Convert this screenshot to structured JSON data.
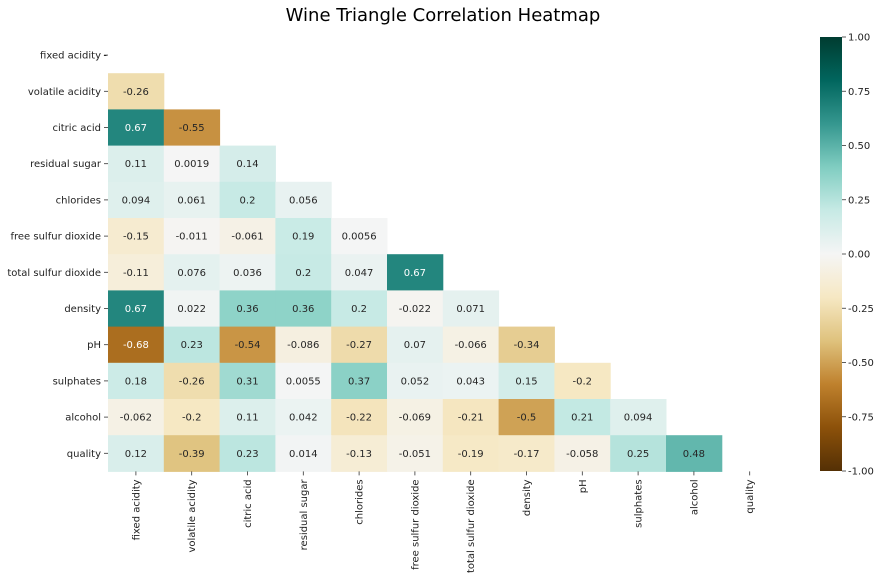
{
  "chart_data": {
    "type": "heatmap",
    "title": "Wine Triangle Correlation Heatmap",
    "variables": [
      "fixed acidity",
      "volatile acidity",
      "citric acid",
      "residual sugar",
      "chlorides",
      "free sulfur dioxide",
      "total sulfur dioxide",
      "density",
      "pH",
      "sulphates",
      "alcohol",
      "quality"
    ],
    "mask": "upper triangle incl. diagonal (lower triangle shown)",
    "empty_cell_label": "-",
    "colormap": "BrBG",
    "vmin": -1.0,
    "vmax": 1.0,
    "colorbar_ticks": [
      "-1.00",
      "-0.75",
      "-0.50",
      "-0.25",
      "0.00",
      "0.25",
      "0.50",
      "0.75",
      "1.00"
    ],
    "rows": [
      {
        "name": "fixed acidity",
        "labels": [],
        "values": []
      },
      {
        "name": "volatile acidity",
        "labels": [
          "-0.26"
        ],
        "values": [
          -0.26
        ]
      },
      {
        "name": "citric acid",
        "labels": [
          "0.67",
          "-0.55"
        ],
        "values": [
          0.67,
          -0.55
        ]
      },
      {
        "name": "residual sugar",
        "labels": [
          "0.11",
          "0.0019",
          "0.14"
        ],
        "values": [
          0.11,
          0.0019,
          0.14
        ]
      },
      {
        "name": "chlorides",
        "labels": [
          "0.094",
          "0.061",
          "0.2",
          "0.056"
        ],
        "values": [
          0.094,
          0.061,
          0.2,
          0.056
        ]
      },
      {
        "name": "free sulfur dioxide",
        "labels": [
          "-0.15",
          "-0.011",
          "-0.061",
          "0.19",
          "0.0056"
        ],
        "values": [
          -0.15,
          -0.011,
          -0.061,
          0.19,
          0.0056
        ]
      },
      {
        "name": "total sulfur dioxide",
        "labels": [
          "-0.11",
          "0.076",
          "0.036",
          "0.2",
          "0.047",
          "0.67"
        ],
        "values": [
          -0.11,
          0.076,
          0.036,
          0.2,
          0.047,
          0.67
        ]
      },
      {
        "name": "density",
        "labels": [
          "0.67",
          "0.022",
          "0.36",
          "0.36",
          "0.2",
          "-0.022",
          "0.071"
        ],
        "values": [
          0.67,
          0.022,
          0.36,
          0.36,
          0.2,
          -0.022,
          0.071
        ]
      },
      {
        "name": "pH",
        "labels": [
          "-0.68",
          "0.23",
          "-0.54",
          "-0.086",
          "-0.27",
          "0.07",
          "-0.066",
          "-0.34"
        ],
        "values": [
          -0.68,
          0.23,
          -0.54,
          -0.086,
          -0.27,
          0.07,
          -0.066,
          -0.34
        ]
      },
      {
        "name": "sulphates",
        "labels": [
          "0.18",
          "-0.26",
          "0.31",
          "0.0055",
          "0.37",
          "0.052",
          "0.043",
          "0.15",
          "-0.2"
        ],
        "values": [
          0.18,
          -0.26,
          0.31,
          0.0055,
          0.37,
          0.052,
          0.043,
          0.15,
          -0.2
        ]
      },
      {
        "name": "alcohol",
        "labels": [
          "-0.062",
          "-0.2",
          "0.11",
          "0.042",
          "-0.22",
          "-0.069",
          "-0.21",
          "-0.5",
          "0.21",
          "0.094"
        ],
        "values": [
          -0.062,
          -0.2,
          0.11,
          0.042,
          -0.22,
          -0.069,
          -0.21,
          -0.5,
          0.21,
          0.094
        ]
      },
      {
        "name": "quality",
        "labels": [
          "0.12",
          "-0.39",
          "0.23",
          "0.014",
          "-0.13",
          "-0.051",
          "-0.19",
          "-0.17",
          "-0.058",
          "0.25",
          "0.48"
        ],
        "values": [
          0.12,
          -0.39,
          0.23,
          0.014,
          -0.13,
          -0.051,
          -0.19,
          -0.17,
          -0.058,
          0.25,
          0.48
        ]
      }
    ]
  }
}
